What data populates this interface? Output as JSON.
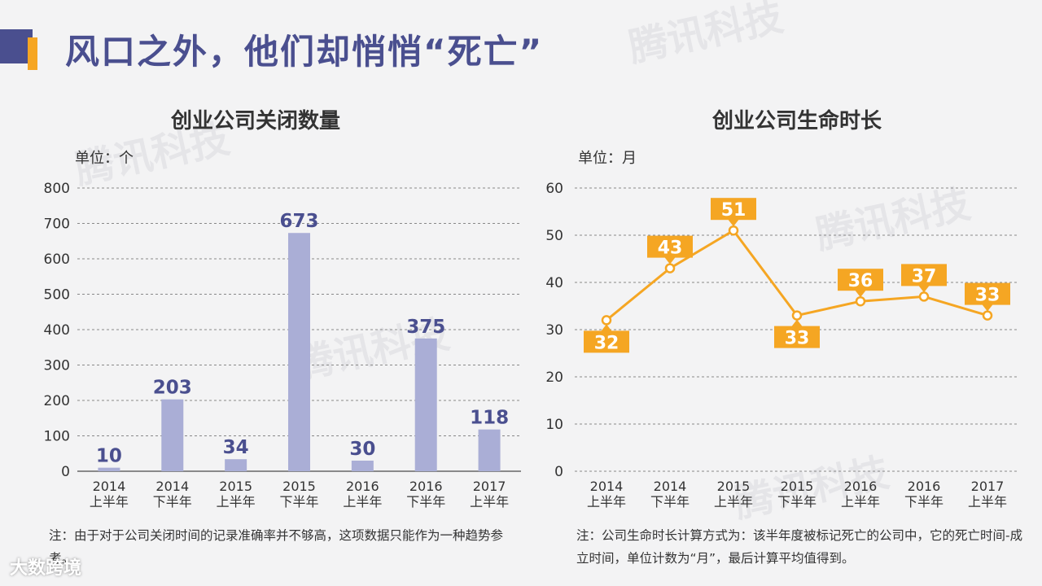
{
  "page": {
    "title": "风口之外，他们却悄悄“死亡”",
    "watermark": "腾讯科技",
    "brand": "大数跨境"
  },
  "left": {
    "unit": "单位：个",
    "note": "注：由于对于公司关闭时间的记录准确率并不够高，这项数据只能作为一种趋势参考。"
  },
  "right": {
    "unit": "单位：月",
    "note": "注：公司生命时长计算方式为：该半年度被标记死亡的公司中，它的死亡时间-成立时间，单位计数为“月”，最后计算平均值得到。"
  },
  "colors": {
    "title": "#4a4f8f",
    "bar": "#aaaed6",
    "line": "#f5a623",
    "label_box": "#f5a623"
  },
  "chart_data": [
    {
      "type": "bar",
      "title": "创业公司关闭数量",
      "categories": [
        [
          "2014",
          "上半年"
        ],
        [
          "2014",
          "下半年"
        ],
        [
          "2015",
          "上半年"
        ],
        [
          "2015",
          "下半年"
        ],
        [
          "2016",
          "上半年"
        ],
        [
          "2016",
          "下半年"
        ],
        [
          "2017",
          "上半年"
        ]
      ],
      "values": [
        10,
        203,
        34,
        673,
        30,
        375,
        118
      ],
      "ylim": [
        0,
        800
      ],
      "yticks": [
        0,
        100,
        200,
        300,
        400,
        500,
        600,
        700,
        800
      ],
      "grid": true
    },
    {
      "type": "line",
      "title": "创业公司生命时长",
      "categories": [
        [
          "2014",
          "上半年"
        ],
        [
          "2014",
          "下半年"
        ],
        [
          "2015",
          "上半年"
        ],
        [
          "2015",
          "下半年"
        ],
        [
          "2016",
          "上半年"
        ],
        [
          "2016",
          "下半年"
        ],
        [
          "2017",
          "上半年"
        ]
      ],
      "values": [
        32,
        43,
        51,
        33,
        36,
        37,
        33
      ],
      "label_position": [
        "below",
        "above",
        "above",
        "below",
        "above",
        "above",
        "above"
      ],
      "ylim": [
        0,
        60
      ],
      "yticks": [
        0,
        10,
        20,
        30,
        40,
        50,
        60
      ],
      "grid": true
    }
  ]
}
